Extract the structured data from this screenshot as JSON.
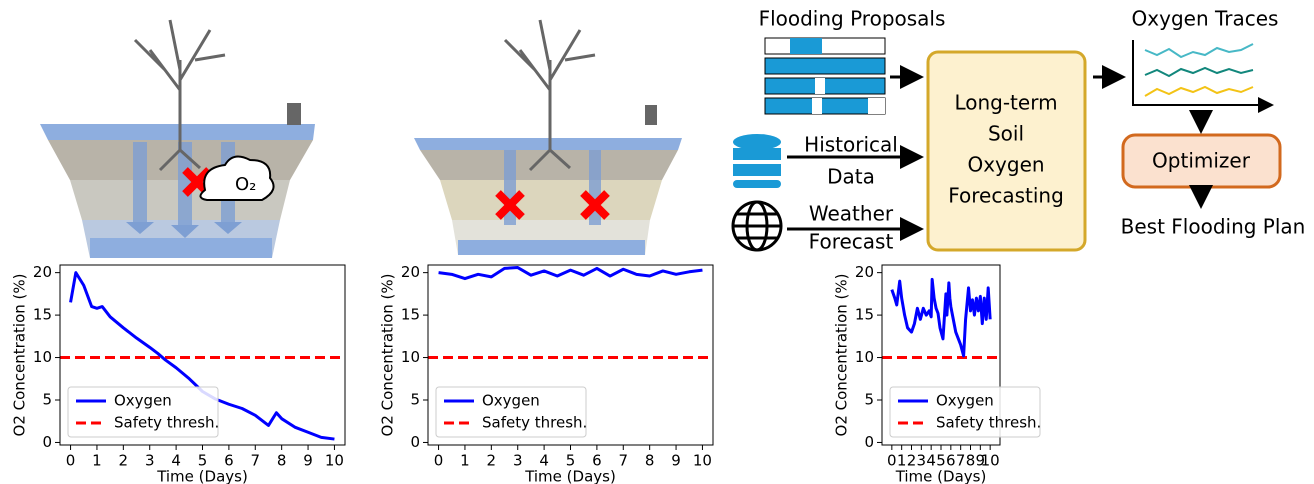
{
  "diagram": {
    "flooding_proposals": "Flooding Proposals",
    "oxygen_traces": "Oxygen Traces",
    "forecaster": [
      "Long-term",
      "Soil",
      "Oxygen",
      "Forecasting"
    ],
    "historical": [
      "Historical",
      "Data"
    ],
    "weather": [
      "Weather",
      "Forecast"
    ],
    "optimizer": "Optimizer",
    "best_plan": "Best Flooding Plan"
  },
  "chart_data": [
    {
      "type": "line",
      "xlabel": "Time (Days)",
      "ylabel": "O2 Concentration (%)",
      "xlim": [
        -0.4,
        10.4
      ],
      "ylim": [
        -0.3,
        20.9
      ],
      "xticks": [
        0,
        1,
        2,
        3,
        4,
        5,
        6,
        7,
        8,
        9,
        10
      ],
      "yticks": [
        0,
        5,
        10,
        15,
        20
      ],
      "legend": "lower-left",
      "series": [
        {
          "name": "Oxygen",
          "color": "#0000ff",
          "x": [
            0,
            0.2,
            0.5,
            0.8,
            1,
            1.2,
            1.5,
            2,
            2.5,
            3,
            3.3,
            3.6,
            4,
            4.5,
            5,
            5.5,
            6,
            6.5,
            7,
            7.5,
            7.8,
            8,
            8.5,
            9,
            9.5,
            10
          ],
          "values": [
            16.5,
            20,
            18.5,
            16,
            15.8,
            16,
            14.8,
            13.5,
            12.3,
            11.2,
            10.5,
            9.7,
            8.8,
            7.5,
            6,
            5.1,
            4.5,
            4,
            3.2,
            2,
            3.5,
            2.8,
            1.8,
            1.2,
            0.6,
            0.4
          ]
        }
      ],
      "threshold": {
        "name": "Safety thresh.",
        "value": 10,
        "color": "#ff0000"
      }
    },
    {
      "type": "line",
      "xlabel": "Time (Days)",
      "ylabel": "O2 Concentration (%)",
      "xlim": [
        -0.4,
        10.4
      ],
      "ylim": [
        -0.3,
        20.9
      ],
      "xticks": [
        0,
        1,
        2,
        3,
        4,
        5,
        6,
        7,
        8,
        9,
        10
      ],
      "yticks": [
        0,
        5,
        10,
        15,
        20
      ],
      "legend": "lower-left",
      "series": [
        {
          "name": "Oxygen",
          "color": "#0000ff",
          "x": [
            0,
            0.5,
            1,
            1.5,
            2,
            2.5,
            3,
            3.5,
            4,
            4.5,
            5,
            5.5,
            6,
            6.5,
            7,
            7.5,
            8,
            8.5,
            9,
            9.5,
            10
          ],
          "values": [
            20,
            19.8,
            19.3,
            19.8,
            19.5,
            20.5,
            20.6,
            19.7,
            20.2,
            19.6,
            20.3,
            19.7,
            20.5,
            19.6,
            20.4,
            19.8,
            19.6,
            20.2,
            19.8,
            20.1,
            20.3
          ]
        }
      ],
      "threshold": {
        "name": "Safety thresh.",
        "value": 10,
        "color": "#ff0000"
      }
    },
    {
      "type": "line",
      "xlabel": "Time (Days)",
      "ylabel": "O2 Concentration (%)",
      "xlim": [
        -1,
        11
      ],
      "ylim": [
        -0.3,
        20.9
      ],
      "xticks": [
        0,
        1,
        2,
        3,
        4,
        5,
        6,
        7,
        8,
        9,
        10
      ],
      "yticks": [
        0,
        5,
        10,
        15,
        20
      ],
      "legend": "lower-left",
      "series": [
        {
          "name": "Oxygen",
          "color": "#0000ff",
          "x": [
            0,
            0.3,
            0.5,
            0.8,
            1,
            1.3,
            1.6,
            2,
            2.3,
            2.6,
            2.9,
            3.2,
            3.5,
            3.8,
            4,
            4.1,
            4.3,
            4.5,
            4.7,
            4.9,
            5.2,
            5.5,
            5.6,
            5.8,
            5.9,
            6,
            6.2,
            6.5,
            7,
            7.3,
            7.5,
            7.8,
            8,
            8.2,
            8.4,
            8.6,
            8.8,
            9,
            9.2,
            9.4,
            9.6,
            9.8,
            10
          ],
          "values": [
            18,
            17,
            16.2,
            19,
            17,
            15,
            13.5,
            13,
            14,
            15.8,
            14.5,
            15.8,
            15,
            15.5,
            14.8,
            19.2,
            17,
            15.8,
            15.2,
            13.5,
            12.2,
            17.5,
            15,
            18.8,
            17,
            16,
            14.8,
            13,
            11.5,
            10.2,
            14.5,
            18.2,
            15.5,
            16.8,
            15,
            17,
            15.5,
            17.2,
            14,
            17,
            14.5,
            18.2,
            14.5
          ]
        }
      ],
      "threshold": {
        "name": "Safety thresh.",
        "value": 10,
        "color": "#ff0000"
      }
    }
  ]
}
